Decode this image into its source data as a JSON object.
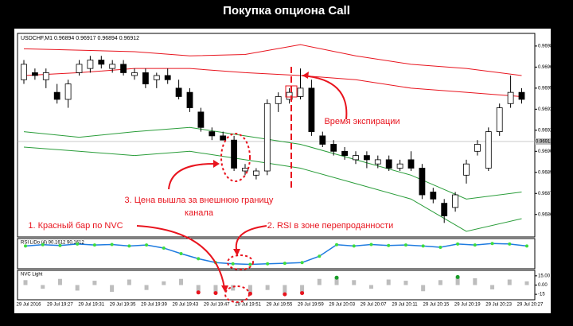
{
  "title": "Покупка опциона Call",
  "annotations": {
    "expiry": "Время экспирации",
    "channel": [
      "3. Цена вышла за внешнюю границу",
      "канала"
    ],
    "nvc": "1. Красный бар по NVC",
    "rsi": "2. RSI в зоне перепроданности"
  },
  "chart_data": {
    "type": "candlestick",
    "symbol_header": "USDCHF,M1  0.96894 0.96917 0.96894 0.96912",
    "time_labels": [
      "29 Jul 2016",
      "29 Jul 19:27",
      "29 Jul 19:31",
      "29 Jul 19:35",
      "29 Jul 19:39",
      "29 Jul 19:43",
      "29 Jul 19:47",
      "29 Jul 19:51",
      "29 Jul 19:55",
      "29 Jul 19:59",
      "29 Jul 20:03",
      "29 Jul 20:07",
      "29 Jul 20:11",
      "29 Jul 20:15",
      "29 Jul 20:19",
      "29 Jul 20:23",
      "29 Jul 20:27"
    ],
    "open": [
      0.96956,
      0.96961,
      0.96956,
      0.96947,
      0.96942,
      0.96961,
      0.96964,
      0.9697,
      0.96964,
      0.96967,
      0.96959,
      0.96961,
      0.96956,
      0.96959,
      0.9695,
      0.96947,
      0.96933,
      0.96919,
      0.96916,
      0.96913,
      0.96891,
      0.96888,
      0.96891,
      0.96939,
      0.96942,
      0.96944,
      0.9695,
      0.96916,
      0.9691,
      0.96905,
      0.96899,
      0.96902,
      0.96896,
      0.96899,
      0.96893,
      0.96899,
      0.96893,
      0.96876,
      0.96868,
      0.96865,
      0.96888,
      0.96905,
      0.96893,
      0.96919,
      0.96939,
      0.96947
    ],
    "high": [
      0.9697,
      0.96964,
      0.96964,
      0.96953,
      0.96956,
      0.9697,
      0.96973,
      0.96973,
      0.9697,
      0.9697,
      0.96964,
      0.96964,
      0.96961,
      0.96964,
      0.96956,
      0.9695,
      0.96936,
      0.96922,
      0.96919,
      0.96916,
      0.96896,
      0.96893,
      0.96942,
      0.96947,
      0.9695,
      0.96964,
      0.96956,
      0.96919,
      0.96913,
      0.96908,
      0.96905,
      0.96905,
      0.96902,
      0.96902,
      0.96899,
      0.96905,
      0.96896,
      0.96879,
      0.96871,
      0.96876,
      0.96899,
      0.96913,
      0.96922,
      0.96939,
      0.96959,
      0.9695
    ],
    "low": [
      0.96953,
      0.96956,
      0.9695,
      0.96939,
      0.96936,
      0.96959,
      0.96961,
      0.96964,
      0.96961,
      0.96959,
      0.96956,
      0.9695,
      0.9695,
      0.96953,
      0.96942,
      0.96933,
      0.96919,
      0.96913,
      0.96913,
      0.96891,
      0.96888,
      0.96885,
      0.96888,
      0.96933,
      0.96939,
      0.96942,
      0.96916,
      0.96908,
      0.96902,
      0.96899,
      0.96896,
      0.96893,
      0.96893,
      0.96891,
      0.96891,
      0.96891,
      0.96871,
      0.96868,
      0.96854,
      0.96862,
      0.96882,
      0.96902,
      0.96891,
      0.96916,
      0.96936,
      0.96939
    ],
    "close": [
      0.96967,
      0.96959,
      0.96961,
      0.96942,
      0.96953,
      0.96967,
      0.9697,
      0.96967,
      0.96967,
      0.96961,
      0.96961,
      0.96953,
      0.96959,
      0.96956,
      0.96944,
      0.96936,
      0.96922,
      0.96916,
      0.96913,
      0.96893,
      0.96893,
      0.96891,
      0.96939,
      0.96944,
      0.96947,
      0.9695,
      0.96919,
      0.9691,
      0.96905,
      0.96902,
      0.96902,
      0.96899,
      0.96899,
      0.96893,
      0.96896,
      0.96893,
      0.96874,
      0.96871,
      0.96859,
      0.96874,
      0.96896,
      0.9691,
      0.96919,
      0.96936,
      0.96947,
      0.96942
    ],
    "ylim": [
      0.96844,
      0.96989
    ],
    "yticks": [
      {
        "value": 0.9698,
        "label": "0.96980"
      },
      0.96965,
      {
        "value": 0.9695,
        "label": "0.96950"
      },
      0.96935,
      {
        "value": 0.9692,
        "label": "0.96920"
      },
      0.96905,
      {
        "value": 0.9689,
        "label": "0.96890"
      },
      0.96875,
      {
        "value": 0.9686,
        "label": "0.96860"
      }
    ],
    "current_price": 0.96912,
    "bands": {
      "x": [
        0,
        5,
        10,
        15,
        20,
        25,
        30,
        35,
        40,
        45
      ],
      "series": [
        {
          "color": "#e8141e",
          "values": [
            0.96978,
            0.96977,
            0.96976,
            0.96973,
            0.96974,
            0.96981,
            0.96973,
            0.96967,
            0.96964,
            0.96959
          ]
        },
        {
          "color": "#e8141e",
          "values": [
            0.96959,
            0.96961,
            0.96964,
            0.96964,
            0.96961,
            0.96959,
            0.96956,
            0.9695,
            0.96947,
            0.96944
          ]
        },
        {
          "color": "#2a9d3a",
          "values": [
            0.96919,
            0.96915,
            0.96919,
            0.96922,
            0.96916,
            0.9691,
            0.96899,
            0.96888,
            0.96871,
            0.96876
          ]
        },
        {
          "color": "#2a9d3a",
          "values": [
            0.96908,
            0.96905,
            0.96902,
            0.96905,
            0.96899,
            0.96893,
            0.96882,
            0.96871,
            0.96848,
            0.96857
          ]
        }
      ]
    },
    "rsi": {
      "name": "RSI LiDo (4) 90.1612 90.1612",
      "color": "#1e7be0",
      "dot_color": "#3ddc3d",
      "ylim": [
        0,
        100
      ],
      "values": [
        80,
        85,
        82,
        88,
        84,
        86,
        80,
        84,
        72,
        50,
        30,
        15,
        10,
        8,
        10,
        12,
        15,
        40,
        85,
        80,
        86,
        82,
        84,
        80,
        75,
        88,
        84,
        90,
        88,
        80
      ]
    },
    "nvc": {
      "name": "NVC Light",
      "ylim": [
        -20,
        20
      ],
      "yticks": [
        {
          "value": 15,
          "label": "15.00"
        },
        {
          "value": 0,
          "label": "0.00"
        },
        -15
      ],
      "values": [
        8,
        -6,
        10,
        -9,
        7,
        -11,
        9,
        -8,
        6,
        10,
        -12,
        -13,
        -9,
        -14,
        -8,
        -15,
        -13,
        10,
        12,
        8,
        -6,
        9,
        7,
        -10,
        8,
        13,
        11,
        -7,
        9,
        6
      ]
    }
  }
}
